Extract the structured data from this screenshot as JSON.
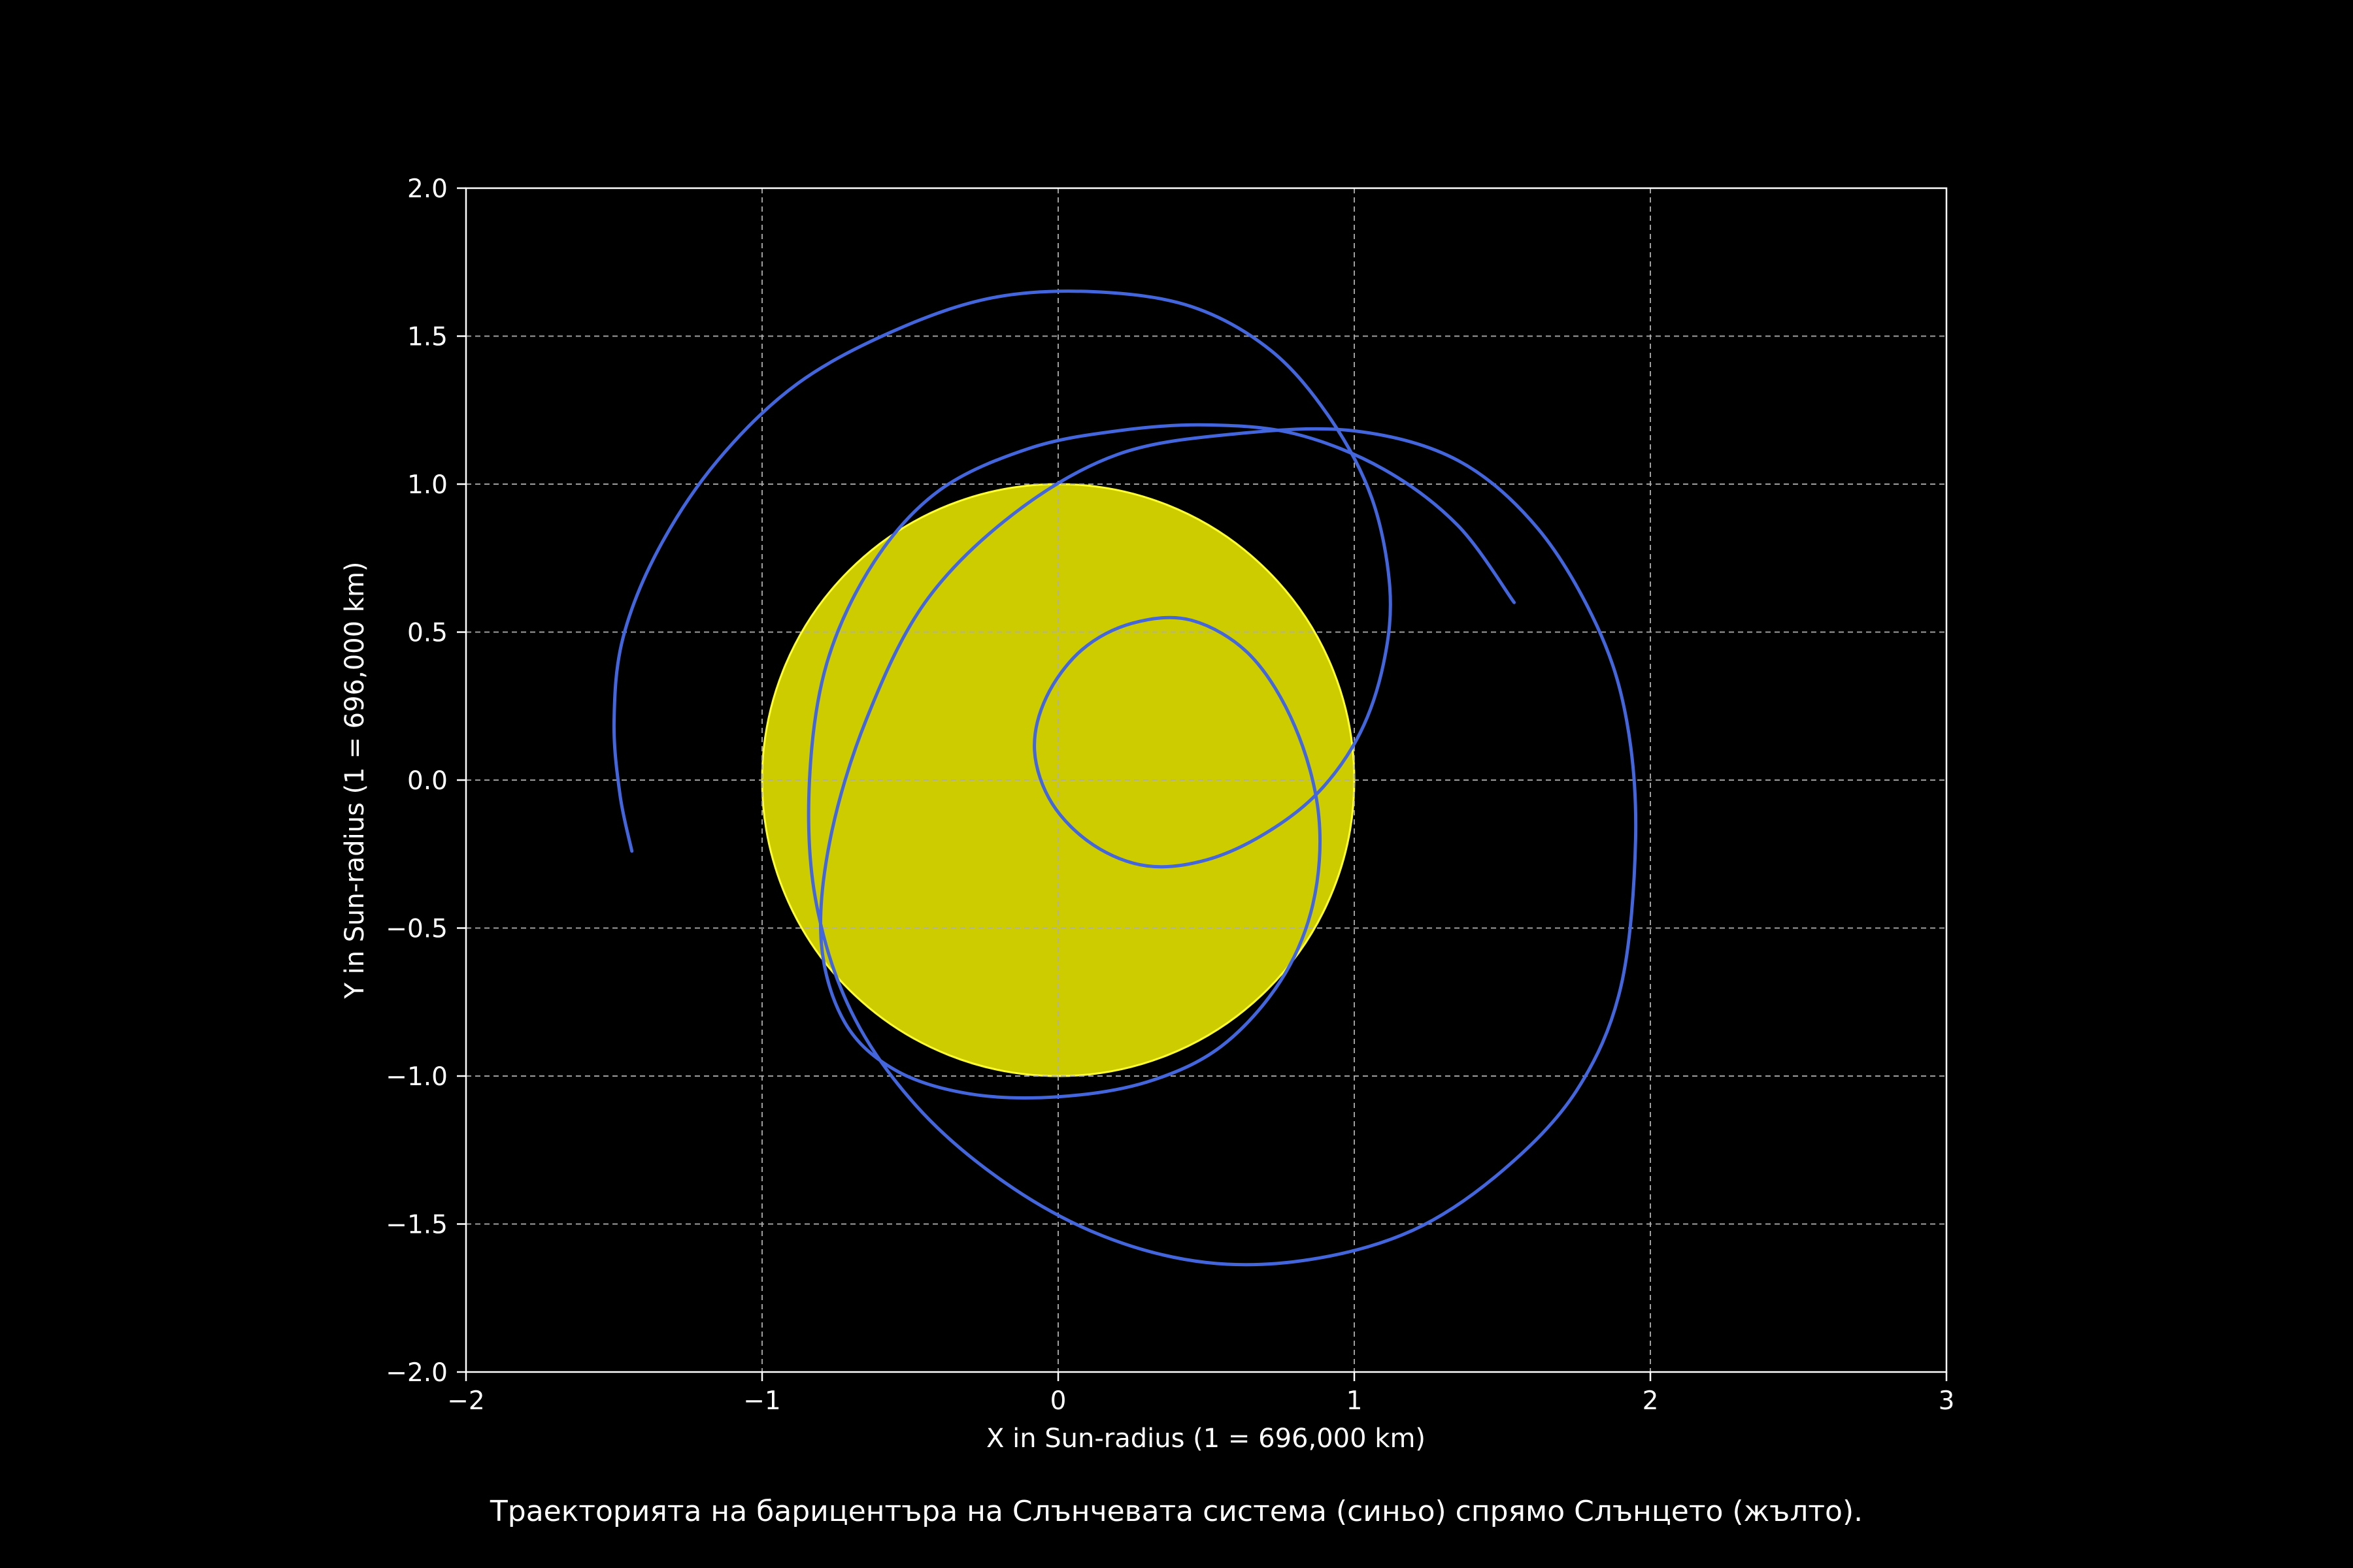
{
  "chart_data": {
    "type": "line",
    "caption": "Траекторията на барицентъра на Слънчевата система (синьо) спрямо Слънцето (жълто).",
    "xlabel": "X in Sun-radius (1 = 696,000 km)",
    "ylabel": "Y in Sun-radius (1 = 696,000 km)",
    "xlim": [
      -2,
      3
    ],
    "ylim": [
      -2,
      2
    ],
    "xticks": [
      -2,
      -1,
      0,
      1,
      2,
      3
    ],
    "yticks": [
      -2,
      -1.5,
      -1,
      -0.5,
      0,
      0.5,
      1,
      1.5,
      2
    ],
    "xtick_labels": [
      "−2",
      "−1",
      "0",
      "1",
      "2",
      "3"
    ],
    "ytick_labels": [
      "−2.0",
      "−1.5",
      "−1.0",
      "−0.5",
      "0.0",
      "0.5",
      "1.0",
      "1.5",
      "2.0"
    ],
    "grid": true,
    "background_color": "#000000",
    "sun": {
      "center": [
        0,
        0
      ],
      "radius": 1,
      "color": "#cccc00",
      "edge_color": "#ffff33"
    },
    "series": [
      {
        "color": "#4466dd",
        "x": [
          1.54,
          1.35,
          1.1,
          0.8,
          0.5,
          0.2,
          -0.1,
          -0.4,
          -0.62,
          -0.78,
          -0.84,
          -0.82,
          -0.7,
          -0.48,
          -0.18,
          0.15,
          0.5,
          0.85,
          1.2,
          1.5,
          1.75,
          1.9,
          1.95,
          1.92,
          1.82,
          1.62,
          1.35,
          1.0,
          0.6,
          0.2,
          -0.15,
          -0.45,
          -0.65,
          -0.77,
          -0.8,
          -0.72,
          -0.55,
          -0.3,
          0.0,
          0.3,
          0.55,
          0.75,
          0.86,
          0.88,
          0.8,
          0.65,
          0.45,
          0.25,
          0.08,
          -0.04,
          -0.08,
          -0.02,
          0.12,
          0.3,
          0.5,
          0.7,
          0.88,
          1.02,
          1.1,
          1.12,
          1.06,
          0.92,
          0.72,
          0.45,
          0.12,
          -0.22,
          -0.55,
          -0.88,
          -1.15,
          -1.35,
          -1.47,
          -1.5,
          -1.48,
          -1.44
        ],
        "y": [
          0.6,
          0.86,
          1.05,
          1.17,
          1.2,
          1.18,
          1.12,
          0.98,
          0.74,
          0.4,
          0.0,
          -0.4,
          -0.78,
          -1.1,
          -1.36,
          -1.54,
          -1.63,
          -1.62,
          -1.52,
          -1.32,
          -1.05,
          -0.7,
          -0.2,
          0.2,
          0.52,
          0.85,
          1.08,
          1.18,
          1.17,
          1.1,
          0.9,
          0.6,
          0.2,
          -0.2,
          -0.55,
          -0.82,
          -0.98,
          -1.06,
          -1.07,
          -1.02,
          -0.9,
          -0.68,
          -0.42,
          -0.12,
          0.18,
          0.42,
          0.54,
          0.53,
          0.44,
          0.28,
          0.1,
          -0.08,
          -0.22,
          -0.29,
          -0.27,
          -0.18,
          -0.04,
          0.16,
          0.4,
          0.65,
          0.95,
          1.22,
          1.45,
          1.6,
          1.65,
          1.63,
          1.52,
          1.34,
          1.08,
          0.78,
          0.48,
          0.2,
          -0.05,
          -0.24
        ]
      }
    ]
  }
}
